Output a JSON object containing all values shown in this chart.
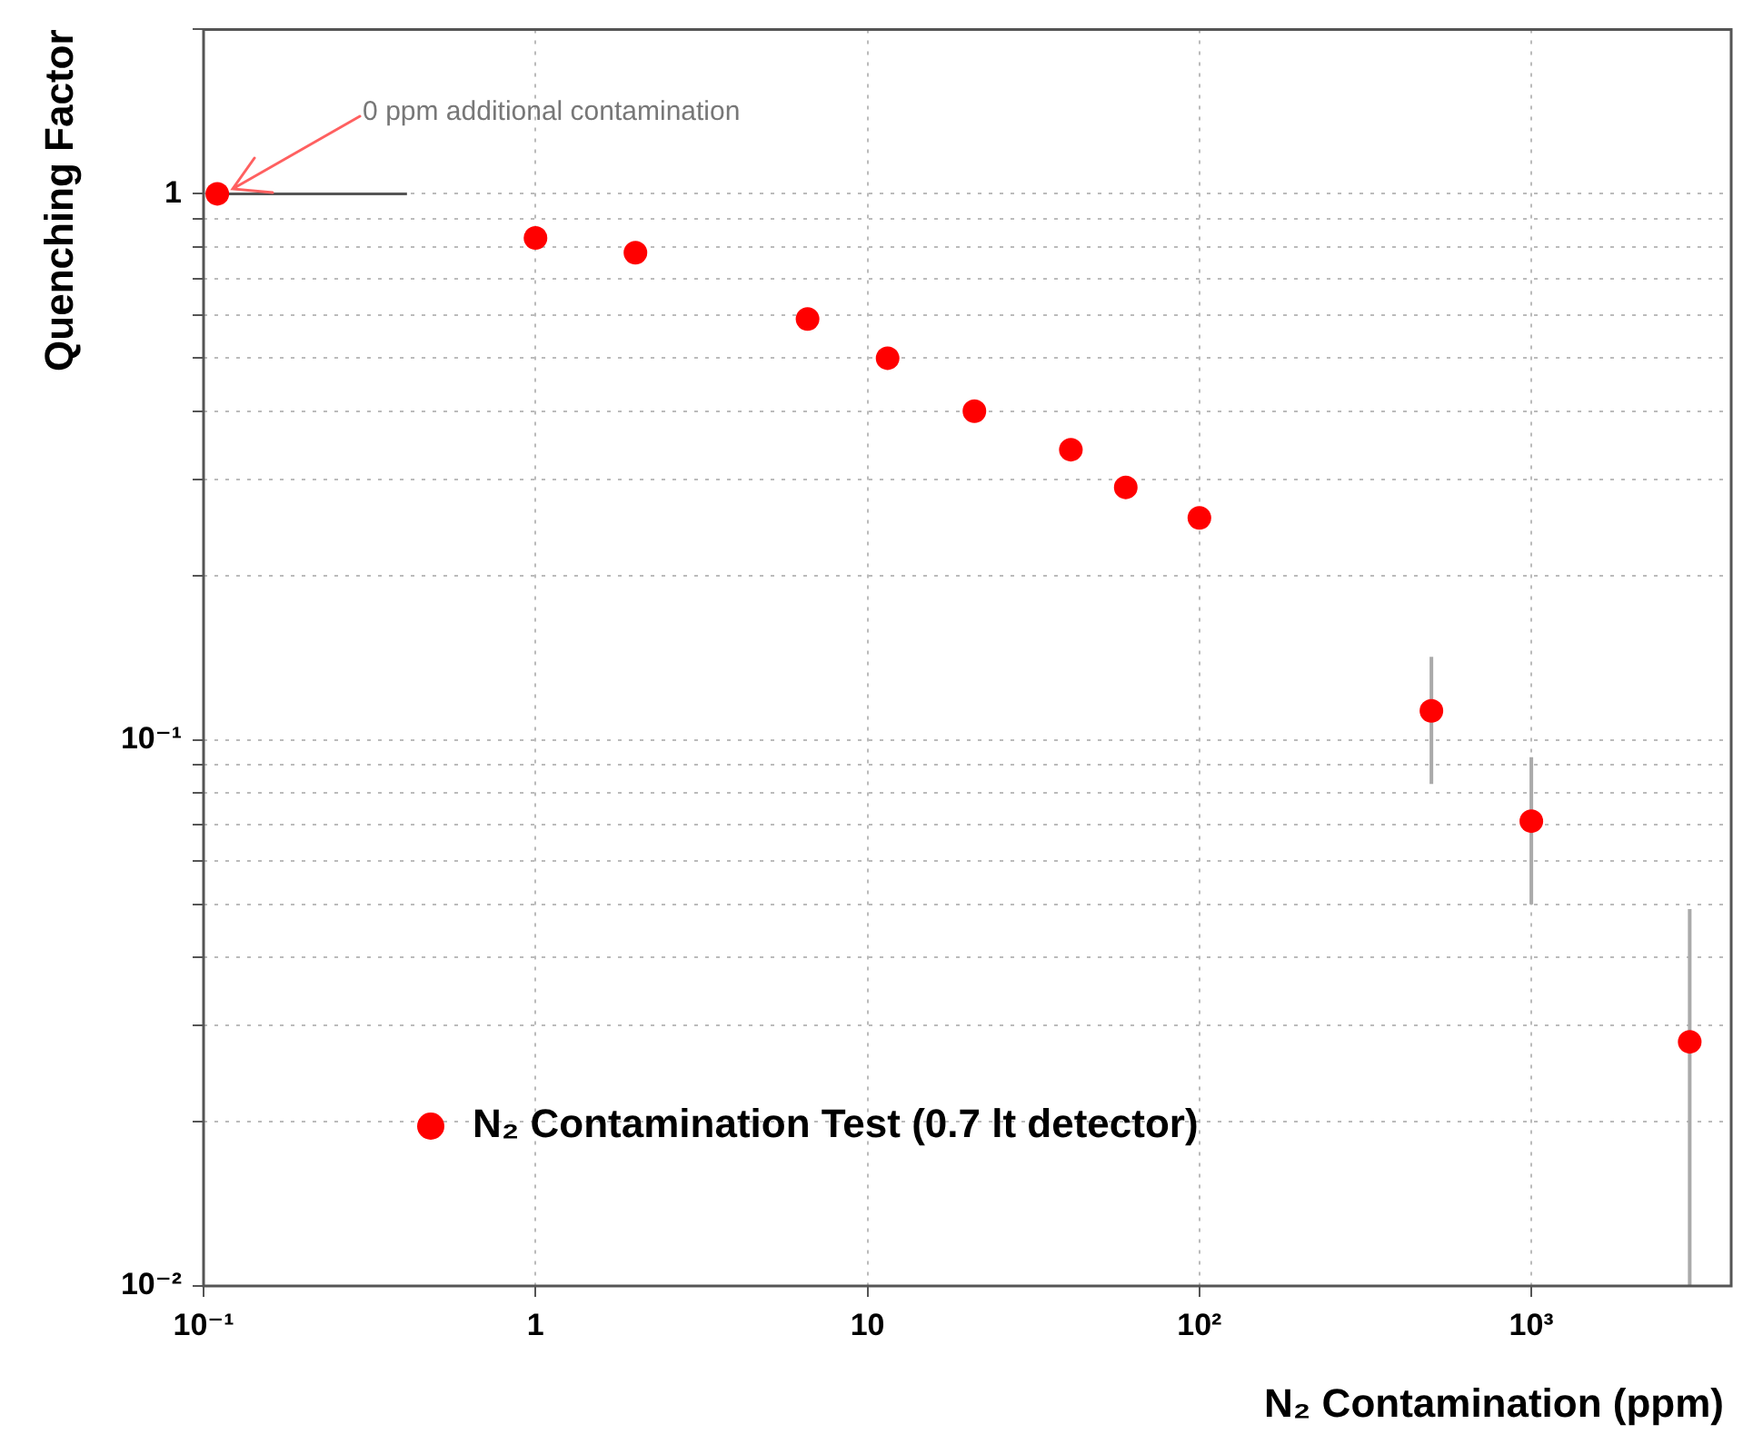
{
  "chart_data": {
    "type": "scatter",
    "xlabel": "N₂ Contamination (ppm)",
    "ylabel": "Quenching Factor",
    "log": "xy",
    "grid": true,
    "legend": "bottom",
    "marker": "circle",
    "xlim": [
      0.1,
      4000
    ],
    "ylim": [
      0.01,
      2
    ],
    "xticks": [
      {
        "value": 0.1,
        "label": "10⁻¹"
      },
      1,
      10,
      {
        "value": 100,
        "label": "10²"
      },
      {
        "value": 1000,
        "label": "10³"
      }
    ],
    "yticks": [
      {
        "value": 0.01,
        "label": "10⁻²"
      },
      {
        "value": 0.02,
        "label": null
      },
      {
        "value": 0.03,
        "label": null
      },
      {
        "value": 0.04,
        "label": null
      },
      {
        "value": 0.05,
        "label": null
      },
      {
        "value": 0.06,
        "label": null
      },
      {
        "value": 0.07,
        "label": null
      },
      {
        "value": 0.08,
        "label": null
      },
      {
        "value": 0.09,
        "label": null
      },
      {
        "value": 0.1,
        "label": "10⁻¹"
      },
      {
        "value": 0.2,
        "label": null
      },
      {
        "value": 0.3,
        "label": null
      },
      {
        "value": 0.4,
        "label": null
      },
      {
        "value": 0.5,
        "label": null
      },
      {
        "value": 0.6,
        "label": null
      },
      {
        "value": 0.7,
        "label": null
      },
      {
        "value": 0.8,
        "label": null
      },
      {
        "value": 0.9,
        "label": null
      },
      1,
      {
        "value": 2,
        "label": null
      }
    ],
    "series": [
      {
        "name": "N₂ Contamination Test (0.7 lt detector)",
        "color": "#ff0000",
        "x": [
          0.11,
          1,
          2,
          6.6,
          11.5,
          21,
          41,
          60,
          100,
          500,
          1000,
          3000
        ],
        "values": [
          1,
          0.83,
          0.78,
          0.59,
          0.5,
          0.4,
          0.34,
          0.29,
          0.255,
          0.113,
          0.071,
          0.028
        ],
        "errors": [
          null,
          null,
          null,
          null,
          null,
          null,
          null,
          null,
          null,
          [
            0.083,
            0.142
          ],
          [
            0.05,
            0.093
          ],
          [
            0.01,
            0.049
          ]
        ],
        "xerrors": [
          [
            0.11,
            0.41
          ],
          null,
          null,
          null,
          null,
          null,
          null,
          null,
          null,
          null,
          null,
          null
        ]
      }
    ],
    "annotations": [
      {
        "text": "0 ppm additional contamination",
        "x": 0.11,
        "y": 1
      }
    ]
  }
}
